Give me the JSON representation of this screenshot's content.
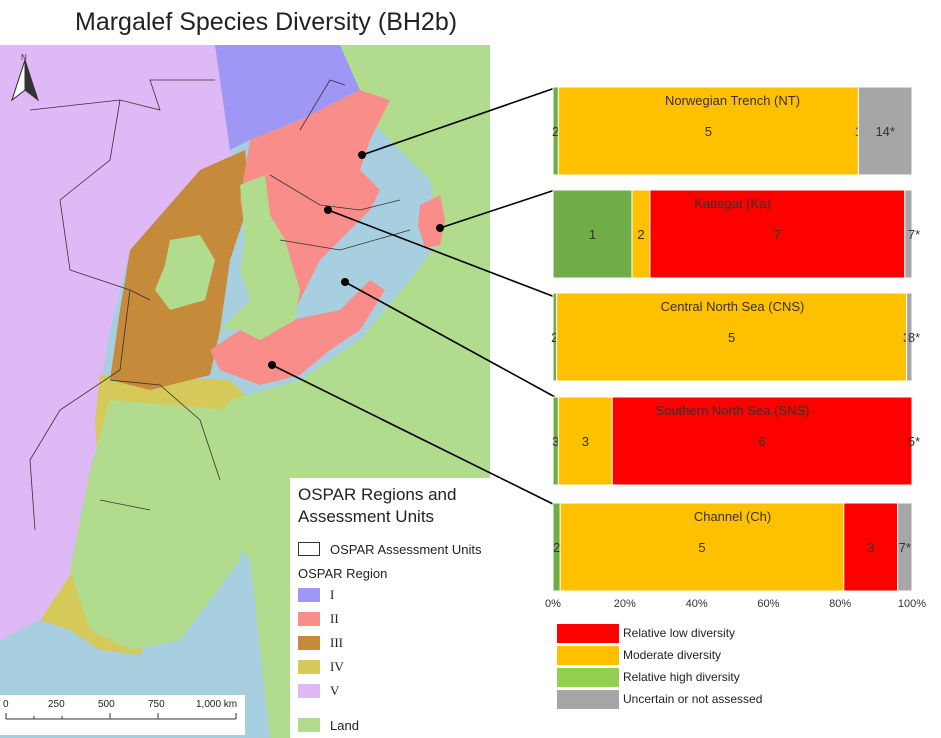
{
  "title": "Margalef Species Diversity (BH2b)",
  "colors": {
    "low": "#ff0000",
    "moderate": "#ffc000",
    "high": "#70ad47",
    "uncertain": "#a6a6a6",
    "region_I": "#9f97f5",
    "region_II": "#f98d8a",
    "region_III": "#c58b3a",
    "region_IV": "#d5c95a",
    "region_V": "#dfb9f5",
    "land": "#b1dc8e",
    "sea": "#a8cfe0"
  },
  "north_label": "N",
  "legend": {
    "heading": "OSPAR Regions and Assessment Units",
    "assessment_units_label": "OSPAR Assessment Units",
    "region_heading": "OSPAR Region",
    "regions": [
      "I",
      "II",
      "III",
      "IV",
      "V"
    ],
    "land_label": "Land"
  },
  "scale_bar": {
    "labels": [
      "0",
      "250",
      "500",
      "750",
      "1,000 km"
    ]
  },
  "chart_data": {
    "type": "bar",
    "orientation": "horizontal",
    "stacked": "percent",
    "categories": [
      "Norwegian Trench (NT)",
      "Kattegat (Ka)",
      "Central North Sea (CNS)",
      "Southern North Sea (SNS)",
      "Channel (Ch)"
    ],
    "series": [
      {
        "name": "Relative high diversity",
        "values": [
          1.5,
          22,
          1,
          1.5,
          2
        ]
      },
      {
        "name": "Moderate diversity",
        "values": [
          84,
          5,
          97,
          15,
          79
        ]
      },
      {
        "name": "Relative low diversity",
        "values": [
          0,
          71,
          0,
          83.5,
          15
        ]
      },
      {
        "name": "Uncertain or not assessed",
        "values": [
          15,
          2,
          1.5,
          0,
          4
        ]
      }
    ],
    "labels": [
      [
        "2",
        "5",
        "1",
        "14*"
      ],
      [
        "1",
        "2",
        "7",
        "7*"
      ],
      [
        "2",
        "5",
        "3",
        "8*"
      ],
      [
        "3",
        "3",
        "6",
        "5*"
      ],
      [
        "2",
        "5",
        "3",
        "7*"
      ]
    ],
    "x_ticks": [
      "0%",
      "20%",
      "40%",
      "60%",
      "80%",
      "100%"
    ],
    "xlim": [
      0,
      100
    ],
    "legend_entries": [
      "Relative low diversity",
      "Moderate diversity",
      "Relative high diversity",
      "Uncertain or not assessed"
    ],
    "legend_position": "bottom"
  }
}
